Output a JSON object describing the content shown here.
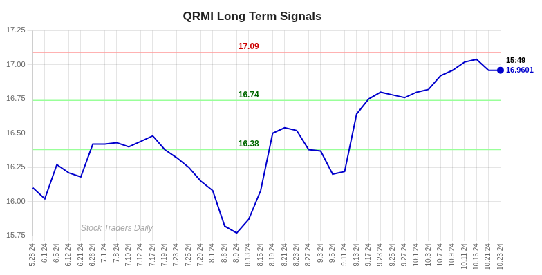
{
  "chart_data": {
    "type": "line",
    "title": "QRMI Long Term Signals",
    "categories": [
      "5.28.24",
      "6.1.24",
      "6.5.24",
      "6.12.24",
      "6.21.24",
      "6.26.24",
      "7.1.24",
      "7.8.24",
      "7.10.24",
      "7.12.24",
      "7.17.24",
      "7.19.24",
      "7.23.24",
      "7.25.24",
      "7.29.24",
      "8.1.24",
      "8.6.24",
      "8.9.24",
      "8.13.24",
      "8.15.24",
      "8.19.24",
      "8.21.24",
      "8.23.24",
      "8.27.24",
      "9.3.24",
      "9.5.24",
      "9.11.24",
      "9.13.24",
      "9.17.24",
      "9.23.24",
      "9.25.24",
      "9.27.24",
      "10.1.24",
      "10.3.24",
      "10.7.24",
      "10.9.24",
      "10.11.24",
      "10.16.24",
      "10.21.24",
      "10.23.24"
    ],
    "values": [
      16.1,
      16.02,
      16.27,
      16.21,
      16.18,
      16.42,
      16.42,
      16.43,
      16.4,
      16.44,
      16.48,
      16.38,
      16.32,
      16.25,
      16.15,
      16.08,
      15.82,
      15.77,
      15.87,
      16.08,
      16.5,
      16.54,
      16.52,
      16.38,
      16.37,
      16.2,
      16.22,
      16.64,
      16.75,
      16.8,
      16.78,
      16.76,
      16.8,
      16.82,
      16.92,
      16.96,
      17.02,
      17.04,
      16.96,
      16.96
    ],
    "color": "#0000CC",
    "ylim": [
      15.75,
      17.25
    ],
    "yticks": [
      15.75,
      {
        "value": 16.0,
        "label": "16.00"
      },
      16.25,
      {
        "value": 16.5,
        "label": "16.50"
      },
      16.75,
      {
        "value": 17.0,
        "label": "17.00"
      },
      17.25
    ],
    "grid": true,
    "hlines": [
      {
        "value": 17.09,
        "label": "17.09",
        "color": "#FF9999",
        "label_color": "#CC0000"
      },
      {
        "value": 16.74,
        "label": "16.74",
        "color": "#99FF99",
        "label_color": "#006600"
      },
      {
        "value": 16.38,
        "label": "16.38",
        "color": "#99FF99",
        "label_color": "#006600"
      }
    ],
    "annotations": [
      {
        "text": "15:49",
        "color": "#000000"
      },
      {
        "text": "16.9601",
        "color": "#0000CC"
      }
    ],
    "watermark": "Stock Traders Daily"
  }
}
